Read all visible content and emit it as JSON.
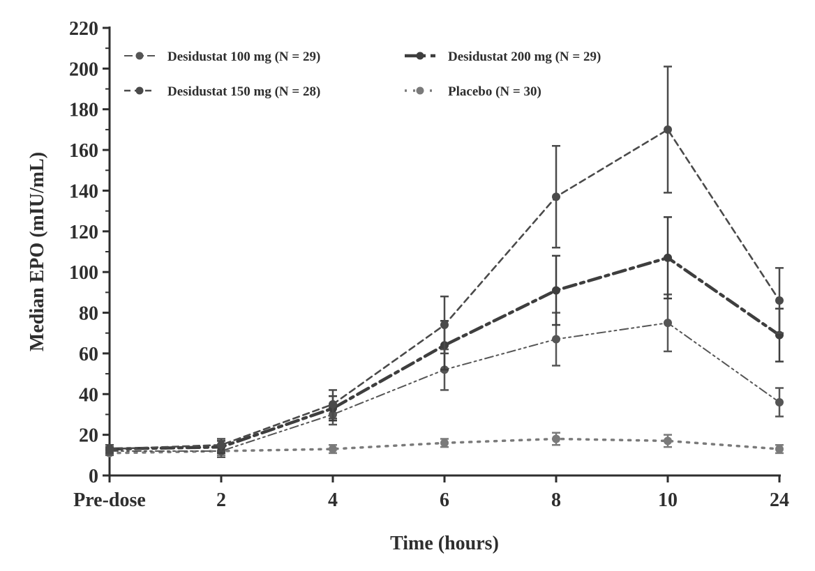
{
  "chart_data": {
    "type": "line",
    "xlabel": "Time (hours)",
    "ylabel": "Median EPO (mIU/mL)",
    "categories": [
      "Pre-dose",
      "2",
      "4",
      "6",
      "8",
      "10",
      "24"
    ],
    "ylim": [
      0,
      220
    ],
    "yticks": [
      0,
      20,
      40,
      60,
      80,
      100,
      120,
      140,
      160,
      180,
      200,
      220
    ],
    "grid": false,
    "legend_position": "top-left",
    "series": [
      {
        "name": "Desidustat 100 mg (N = 29)",
        "style": "dash-dot-dot",
        "color": "#555555",
        "values": [
          12,
          12,
          30,
          52,
          67,
          75,
          36
        ],
        "errors": [
          2,
          3,
          5,
          10,
          13,
          14,
          7
        ]
      },
      {
        "name": "Desidustat 150 mg (N = 28)",
        "style": "dashed",
        "color": "#4a4a4a",
        "values": [
          13,
          15,
          35,
          74,
          137,
          170,
          86
        ],
        "errors": [
          2,
          3,
          7,
          14,
          25,
          31,
          16
        ]
      },
      {
        "name": "Desidustat 200 mg (N = 29)",
        "style": "dash-dot",
        "color": "#3e3e3e",
        "values": [
          13,
          14,
          33,
          64,
          91,
          107,
          69
        ],
        "errors": [
          2,
          3,
          6,
          12,
          17,
          20,
          13
        ]
      },
      {
        "name": "Placebo (N = 30)",
        "style": "dotted",
        "color": "#7a7a7a",
        "values": [
          11,
          12,
          13,
          16,
          18,
          17,
          13
        ],
        "errors": [
          1,
          2,
          2,
          2,
          3,
          3,
          2
        ]
      }
    ]
  }
}
